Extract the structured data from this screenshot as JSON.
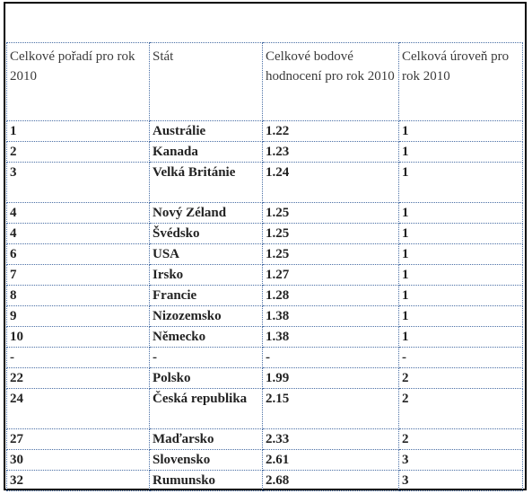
{
  "table": {
    "headers": [
      "Celkové pořadí pro rok 2010",
      "Stát",
      "Celkové bodové hodnocení pro rok 2010",
      "Celková úroveň pro rok 2010"
    ],
    "rows": [
      [
        "1",
        "Austrálie",
        "1.22",
        "1"
      ],
      [
        "2",
        "Kanada",
        "1.23",
        "1"
      ],
      [
        "3",
        "Velká Británie",
        "1.24",
        "1"
      ],
      [
        "4",
        "Nový Zéland",
        "1.25",
        "1"
      ],
      [
        "4",
        "Švédsko",
        "1.25",
        "1"
      ],
      [
        "6",
        "USA",
        "1.25",
        "1"
      ],
      [
        "7",
        "Irsko",
        "1.27",
        "1"
      ],
      [
        "8",
        "Francie",
        "1.28",
        "1"
      ],
      [
        "9",
        "Nizozemsko",
        "1.38",
        "1"
      ],
      [
        "10",
        "Německo",
        "1.38",
        "1"
      ],
      [
        "-",
        "-",
        "-",
        "-"
      ],
      [
        "22",
        "Polsko",
        "1.99",
        "2"
      ],
      [
        "24",
        "Česká republika",
        "2.15",
        "2"
      ],
      [
        "27",
        "Maďarsko",
        "2.33",
        "2"
      ],
      [
        "30",
        "Slovensko",
        "2.61",
        "3"
      ],
      [
        "32",
        "Rumunsko",
        "2.68",
        "3"
      ]
    ]
  }
}
